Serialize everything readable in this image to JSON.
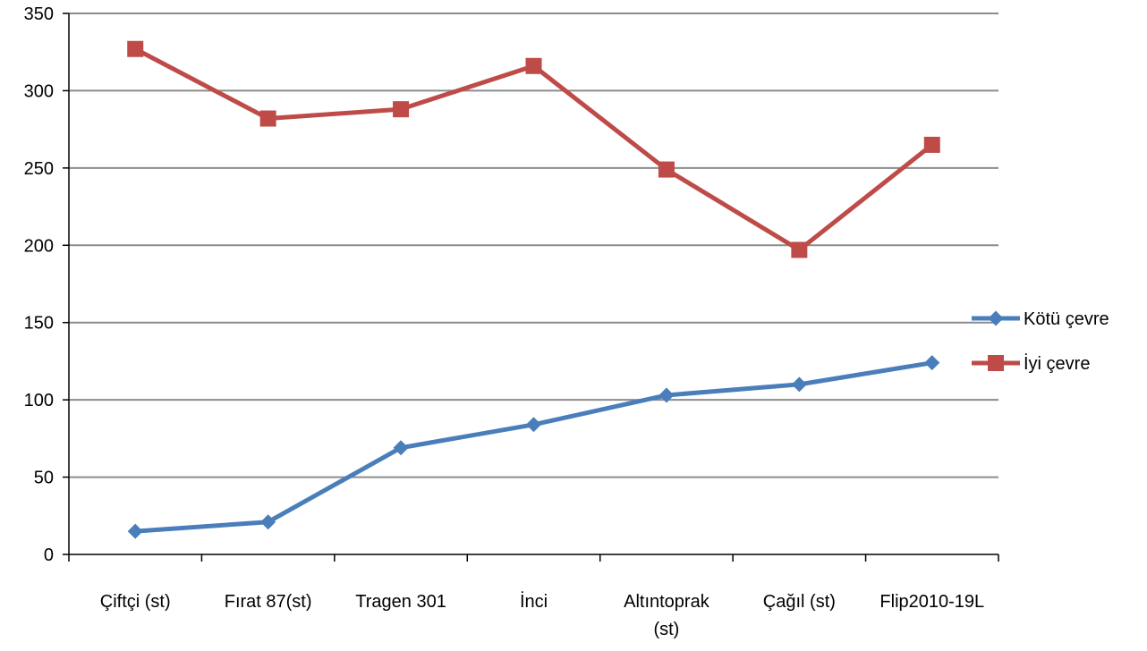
{
  "chart_data": {
    "type": "line",
    "categories": [
      [
        "Çiftçi (st)"
      ],
      [
        "Fırat 87(st)"
      ],
      [
        "Tragen 301"
      ],
      [
        "İnci"
      ],
      [
        "Altıntoprak",
        "(st)"
      ],
      [
        "Çağıl (st)"
      ],
      [
        "Flip2010-19L"
      ]
    ],
    "series": [
      {
        "name": "Kötü çevre",
        "values": [
          15,
          21,
          69,
          84,
          103,
          110,
          124
        ],
        "color": "#4a7ebb",
        "marker": "diamond"
      },
      {
        "name": "İyi çevre",
        "values": [
          327,
          282,
          288,
          316,
          249,
          197,
          265
        ],
        "color": "#be4b48",
        "marker": "square"
      }
    ],
    "ylim": [
      0,
      350
    ],
    "yticks": [
      "0",
      "50",
      "100",
      "150",
      "200",
      "250",
      "300",
      "350"
    ],
    "grid": true,
    "legend": "right"
  }
}
